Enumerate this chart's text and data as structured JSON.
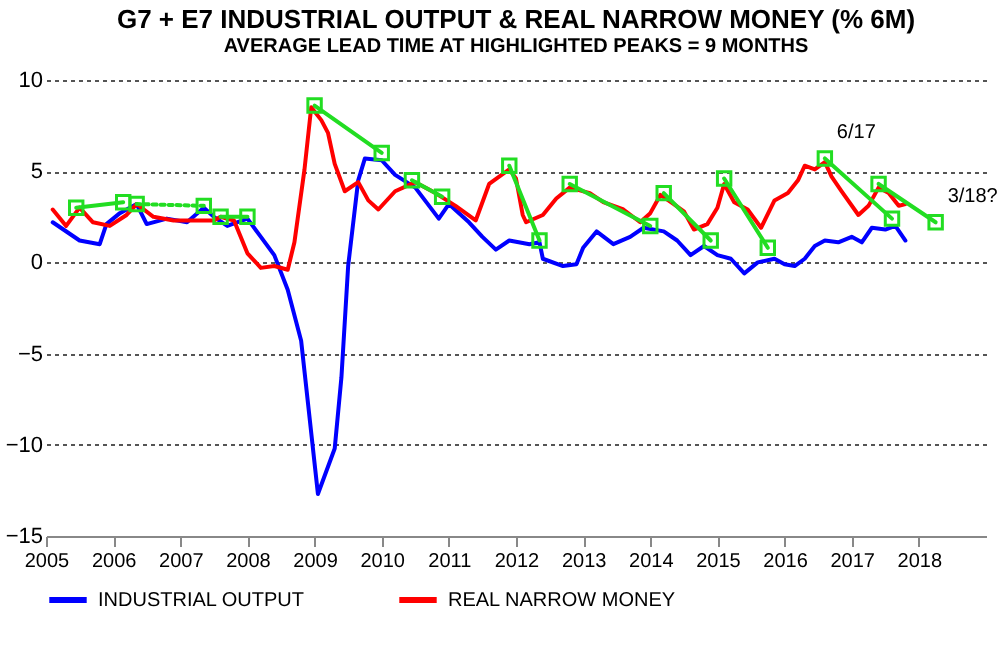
{
  "chart_data": {
    "type": "line",
    "title": "G7 + E7 INDUSTRIAL OUTPUT & REAL NARROW MONEY (% 6M)",
    "subtitle": "AVERAGE LEAD TIME AT HIGHLIGHTED PEAKS = 9 MONTHS",
    "xlim": [
      2005,
      2019
    ],
    "xticks": [
      2005,
      2006,
      2007,
      2008,
      2009,
      2010,
      2011,
      2012,
      2013,
      2014,
      2015,
      2016,
      2017,
      2018
    ],
    "ylim": [
      -15,
      10
    ],
    "yticks": [
      -15,
      -10,
      -5,
      0,
      5,
      10
    ],
    "grid": "y",
    "legend": "bottom",
    "series": [
      {
        "name": "INDUSTRIAL OUTPUT",
        "color": "#0000ff",
        "x": [
          2005.1,
          2005.5,
          2005.8,
          2005.9,
          2006.1,
          2006.35,
          2006.5,
          2006.8,
          2007.1,
          2007.35,
          2007.5,
          2007.7,
          2008.0,
          2008.2,
          2008.4,
          2008.6,
          2008.8,
          2009.05,
          2009.3,
          2009.4,
          2009.5,
          2009.65,
          2009.75,
          2010.0,
          2010.2,
          2010.5,
          2010.85,
          2011.0,
          2011.3,
          2011.5,
          2011.7,
          2011.9,
          2012.2,
          2012.35,
          2012.4,
          2012.7,
          2012.9,
          2013.0,
          2013.2,
          2013.45,
          2013.7,
          2013.9,
          2014.2,
          2014.4,
          2014.6,
          2014.8,
          2015.0,
          2015.2,
          2015.4,
          2015.6,
          2015.85,
          2016.0,
          2016.15,
          2016.3,
          2016.45,
          2016.6,
          2016.8,
          2017.0,
          2017.15,
          2017.3,
          2017.5,
          2017.65,
          2017.8
        ],
        "values": [
          2.2,
          1.2,
          1.0,
          2.1,
          2.7,
          3.2,
          2.1,
          2.4,
          2.2,
          3.0,
          2.5,
          2.0,
          2.4,
          1.4,
          0.4,
          -1.5,
          -4.3,
          -12.7,
          -10.2,
          -6.3,
          -0.2,
          4.5,
          5.7,
          5.6,
          4.8,
          4.1,
          2.4,
          3.2,
          2.2,
          1.4,
          0.7,
          1.2,
          1.0,
          1.1,
          0.2,
          -0.2,
          -0.1,
          0.8,
          1.7,
          1.0,
          1.4,
          1.9,
          1.7,
          1.2,
          0.4,
          0.9,
          0.4,
          0.2,
          -0.6,
          0.0,
          0.2,
          -0.1,
          -0.2,
          0.2,
          0.9,
          1.2,
          1.1,
          1.4,
          1.1,
          1.9,
          1.8,
          2.0,
          1.2
        ]
      },
      {
        "name": "REAL NARROW MONEY",
        "color": "#ff0000",
        "x": [
          2005.1,
          2005.3,
          2005.5,
          2005.7,
          2005.95,
          2006.2,
          2006.35,
          2006.6,
          2006.9,
          2007.25,
          2007.5,
          2007.6,
          2007.8,
          2008.0,
          2008.2,
          2008.4,
          2008.6,
          2008.7,
          2008.85,
          2008.95,
          2009.1,
          2009.2,
          2009.3,
          2009.45,
          2009.65,
          2009.8,
          2009.95,
          2010.2,
          2010.5,
          2010.8,
          2011.1,
          2011.4,
          2011.6,
          2011.9,
          2012.0,
          2012.1,
          2012.15,
          2012.4,
          2012.6,
          2012.8,
          2013.1,
          2013.3,
          2013.6,
          2013.85,
          2014.0,
          2014.15,
          2014.35,
          2014.5,
          2014.65,
          2014.85,
          2015.0,
          2015.1,
          2015.25,
          2015.45,
          2015.65,
          2015.85,
          2016.05,
          2016.2,
          2016.3,
          2016.45,
          2016.6,
          2016.7,
          2016.85,
          2017.1,
          2017.25,
          2017.4,
          2017.55,
          2017.7,
          2017.8
        ],
        "values": [
          2.9,
          2.0,
          3.0,
          2.2,
          2.0,
          2.6,
          3.2,
          2.5,
          2.3,
          2.3,
          2.3,
          2.5,
          2.3,
          0.5,
          -0.3,
          -0.2,
          -0.4,
          1.1,
          5.1,
          8.5,
          7.8,
          7.1,
          5.4,
          3.9,
          4.4,
          3.4,
          2.9,
          3.9,
          4.4,
          3.8,
          3.1,
          2.3,
          4.3,
          5.1,
          4.6,
          2.6,
          2.2,
          2.6,
          3.5,
          4.1,
          3.8,
          3.3,
          2.9,
          2.2,
          2.7,
          3.7,
          3.2,
          2.8,
          1.8,
          2.1,
          3.0,
          4.3,
          3.3,
          2.9,
          1.9,
          3.4,
          3.8,
          4.5,
          5.3,
          5.1,
          5.5,
          4.7,
          3.9,
          2.6,
          3.1,
          4.1,
          3.8,
          3.1,
          3.2
        ]
      },
      {
        "color": "#22dd22",
        "marker": "square",
        "x": [
          2005.45,
          2006.15
        ],
        "values": [
          3.0,
          3.3
        ]
      },
      {
        "color": "#22dd22",
        "marker": "square",
        "x": [
          2007.6,
          2008.0
        ],
        "values": [
          2.5,
          2.5
        ]
      },
      {
        "color": "#22dd22",
        "marker": "square",
        "x": [
          2009.0,
          2010.0
        ],
        "values": [
          8.6,
          6.0
        ]
      },
      {
        "color": "#22dd22",
        "marker": "square",
        "x": [
          2010.45,
          2010.9
        ],
        "values": [
          4.5,
          3.6
        ]
      },
      {
        "color": "#22dd22",
        "marker": "square",
        "x": [
          2011.9,
          2012.35
        ],
        "values": [
          5.3,
          1.2
        ]
      },
      {
        "color": "#22dd22",
        "marker": "square",
        "x": [
          2012.8,
          2014.0
        ],
        "values": [
          4.3,
          2.0
        ]
      },
      {
        "color": "#22dd22",
        "marker": "square",
        "x": [
          2014.2,
          2014.9
        ],
        "values": [
          3.8,
          1.2
        ]
      },
      {
        "color": "#22dd22",
        "marker": "square",
        "x": [
          2015.1,
          2015.75
        ],
        "values": [
          4.6,
          0.8
        ]
      },
      {
        "color": "#22dd22",
        "marker": "square",
        "x": [
          2016.6,
          2017.6
        ],
        "values": [
          5.7,
          2.4
        ]
      },
      {
        "color": "#22dd22",
        "marker": "square",
        "x": [
          2017.4,
          2018.25
        ],
        "values": [
          4.3,
          2.2
        ]
      },
      {
        "color": "#22dd22",
        "marker": "square",
        "line_style": "dotted",
        "x": [
          2006.35,
          2007.35
        ],
        "values": [
          3.2,
          3.1
        ]
      }
    ],
    "annotations": [
      {
        "text": "6/17",
        "x": 2016.6,
        "y": 5.7
      },
      {
        "text": "3/18?",
        "x": 2018.25,
        "y": 2.2
      }
    ]
  }
}
